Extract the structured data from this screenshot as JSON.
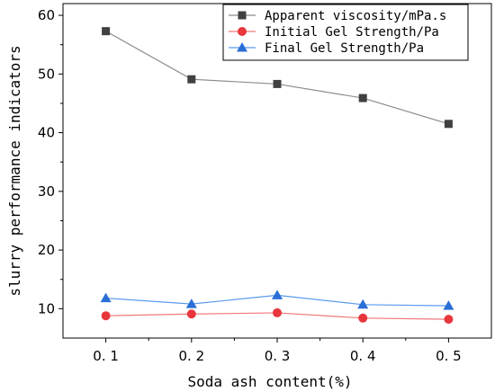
{
  "chart_data": {
    "type": "line",
    "title": "",
    "xlabel": "Soda ash content(%)",
    "ylabel": "slurry performance indicators",
    "x": [
      0.1,
      0.2,
      0.3,
      0.4,
      0.5
    ],
    "x_tick_labels": [
      "0. 1",
      "0. 2",
      "0. 3",
      "0. 4",
      "0. 5"
    ],
    "xlim": [
      0.05,
      0.55
    ],
    "ylim": [
      5,
      62
    ],
    "y_ticks": [
      10,
      20,
      30,
      40,
      50,
      60
    ],
    "grid": false,
    "legend_position": "top-right",
    "series": [
      {
        "name": "Apparent viscosity/mPa.s",
        "values": [
          57.3,
          49.1,
          48.3,
          45.9,
          41.5
        ],
        "color": "#404040",
        "line_color": "#8c8c8c",
        "marker": "square"
      },
      {
        "name": "Initial Gel Strength/Pa",
        "values": [
          8.8,
          9.1,
          9.3,
          8.4,
          8.2
        ],
        "color": "#e8363c",
        "line_color": "#f07878",
        "marker": "circle"
      },
      {
        "name": "Final Gel Strength/Pa",
        "values": [
          11.8,
          10.8,
          12.3,
          10.7,
          10.5
        ],
        "color": "#2a6fd6",
        "line_color": "#5b9bef",
        "marker": "triangle"
      }
    ]
  }
}
